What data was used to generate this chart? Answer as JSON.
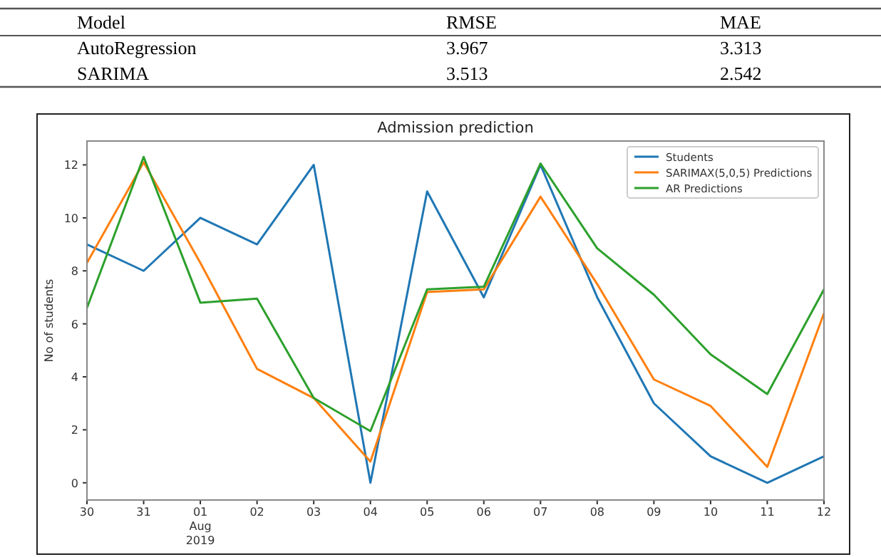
{
  "chart_data": {
    "type": "line",
    "title": "Admission prediction",
    "ylabel": "No of students",
    "annotations": [
      "Model",
      "RMSE",
      "MAE",
      "AutoRegression",
      "3.967",
      "3.313",
      "SARIMA",
      "3.513",
      "2.542"
    ],
    "x": [
      "2019-07-30",
      "2019-07-31",
      "2019-08-01",
      "2019-08-02",
      "2019-08-03",
      "2019-08-04",
      "2019-08-05",
      "2019-08-06",
      "2019-08-07",
      "2019-08-08",
      "2019-08-09",
      "2019-08-10",
      "2019-08-11",
      "2019-08-12"
    ],
    "series": [
      {
        "name": "Students",
        "color": "#1f77b4",
        "values": [
          9,
          8,
          10,
          9,
          12,
          0,
          11,
          7,
          12,
          7,
          3,
          1,
          0,
          1
        ]
      },
      {
        "name": "SARIMAX(5,0,5) Predictions",
        "color": "#ff7f0e",
        "values": [
          8.3,
          12.1,
          8.3,
          4.3,
          3.2,
          0.8,
          7.2,
          7.3,
          10.8,
          7.5,
          3.9,
          2.9,
          0.6,
          6.4
        ]
      },
      {
        "name": "AR Predictions",
        "color": "#2ca02c",
        "values": [
          6.6,
          12.3,
          6.8,
          6.95,
          3.2,
          1.95,
          7.3,
          7.4,
          12.05,
          8.85,
          7.1,
          4.85,
          3.35,
          7.3
        ]
      }
    ],
    "xlim": [
      "2019-07-30",
      "2019-08-12"
    ],
    "xticks": [
      {
        "value": "2019-07-30",
        "label": "30"
      },
      {
        "value": "2019-07-31",
        "label": "31"
      },
      {
        "value": "2019-08-01",
        "label": "01\nAug\n2019"
      },
      {
        "value": "2019-08-02",
        "label": "02"
      },
      {
        "value": "2019-08-03",
        "label": "03"
      },
      {
        "value": "2019-08-04",
        "label": "04"
      },
      {
        "value": "2019-08-05",
        "label": "05"
      },
      {
        "value": "2019-08-06",
        "label": "06"
      },
      {
        "value": "2019-08-07",
        "label": "07"
      },
      {
        "value": "2019-08-08",
        "label": "08"
      },
      {
        "value": "2019-08-09",
        "label": "09"
      },
      {
        "value": "2019-08-10",
        "label": "10"
      },
      {
        "value": "2019-08-11",
        "label": "11"
      },
      {
        "value": "2019-08-12",
        "label": "12"
      }
    ],
    "ylim": [
      -0.65,
      12.9
    ],
    "yticks": [
      0,
      2,
      4,
      6,
      8,
      10,
      12
    ],
    "grid": false,
    "legend": "top right",
    "marker": "none",
    "line_style": "solid"
  }
}
